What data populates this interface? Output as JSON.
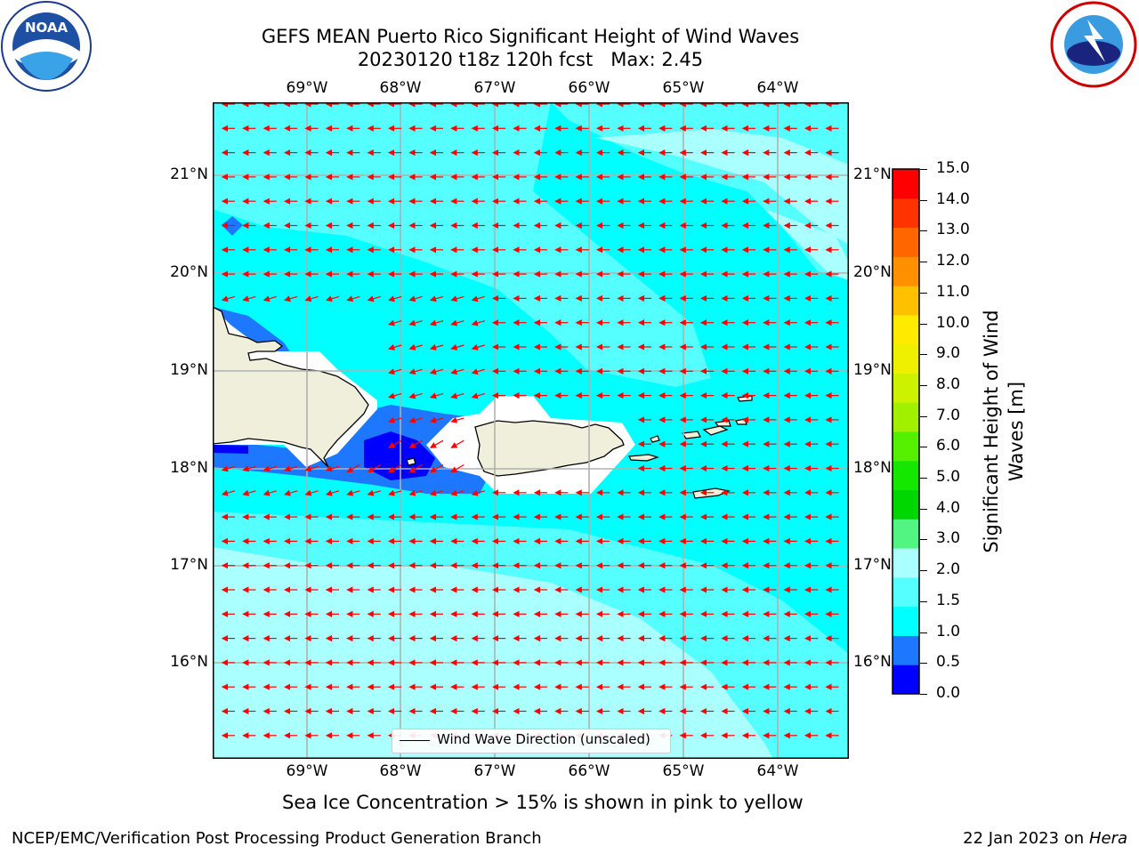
{
  "title": {
    "line1": "GEFS MEAN Puerto Rico Significant Height of Wind Waves",
    "line2": "20230120 t18z 120h fcst   Max: 2.45"
  },
  "map": {
    "lon_labels": [
      "69°W",
      "68°W",
      "67°W",
      "66°W",
      "65°W",
      "64°W"
    ],
    "lat_labels": [
      "21°N",
      "20°N",
      "19°N",
      "18°N",
      "17°N",
      "16°N"
    ],
    "legend": "Wind Wave Direction (unscaled)",
    "land_color": "#efefdb",
    "vector_color": "#ff0000"
  },
  "colorbar": {
    "title": "Significant Height of Wind Waves [m]",
    "labels": [
      "15.0",
      "14.0",
      "13.0",
      "12.0",
      "11.0",
      "10.0",
      "9.0",
      "8.0",
      "7.0",
      "6.0",
      "5.0",
      "4.0",
      "3.0",
      "2.0",
      "1.5",
      "1.0",
      "0.5",
      "0.0"
    ],
    "colors": [
      "#0000ff",
      "#1e78ff",
      "#00ffff",
      "#55ffff",
      "#aaffff",
      "#52f582",
      "#00d700",
      "#14e800",
      "#55ef00",
      "#a0f000",
      "#ccf200",
      "#eef000",
      "#ffea00",
      "#ffc000",
      "#ff9000",
      "#ff6600",
      "#ff3300",
      "#ff0000"
    ]
  },
  "subtitle": "Sea Ice Concentration > 15% is shown in pink to yellow",
  "footer": {
    "left": "NCEP/EMC/Verification Post Processing Product Generation Branch",
    "date": "22 Jan 2023 on ",
    "host": "Hera"
  }
}
